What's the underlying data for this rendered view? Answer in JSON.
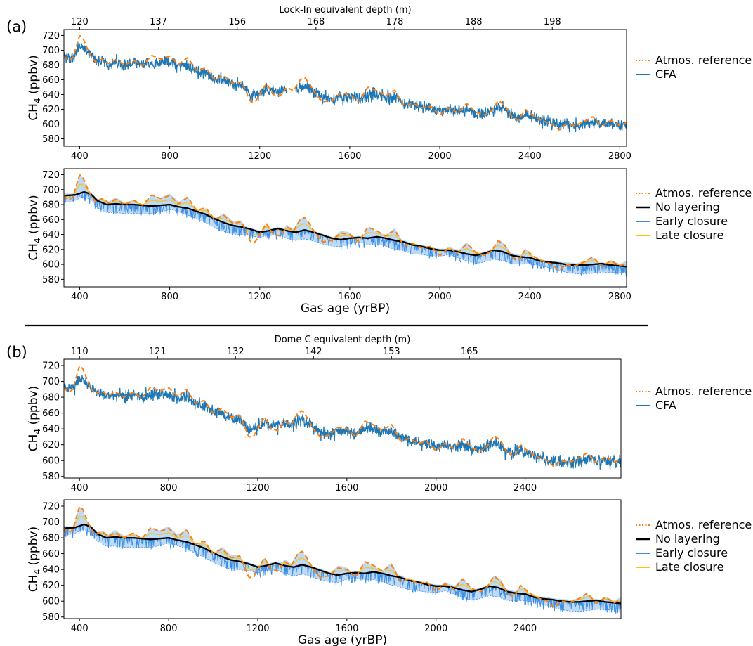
{
  "figure": {
    "separator_color": "#000000"
  },
  "colors": {
    "atmos": "#ff7f0e",
    "cfa": "#1f77b4",
    "no_layering": "#000000",
    "early": "#3a8ee6",
    "late": "#ffc000",
    "band_fill": "#a8cdf2"
  },
  "chart_data": [
    {
      "panel": "(a)",
      "type": "line",
      "xlabel": "",
      "ylabel": "CH4 (ppbv)",
      "top_axis_label": "Lock-In equivalent depth (m)",
      "top_ticks": [
        {
          "x": 400,
          "label": "120"
        },
        {
          "x": 750,
          "label": "137"
        },
        {
          "x": 1100,
          "label": "156"
        },
        {
          "x": 1450,
          "label": "168"
        },
        {
          "x": 1800,
          "label": "178"
        },
        {
          "x": 2150,
          "label": "188"
        },
        {
          "x": 2500,
          "label": "198"
        }
      ],
      "xlim": [
        330,
        2830
      ],
      "ylim": [
        570,
        728
      ],
      "xticks": [
        400,
        800,
        1200,
        1600,
        2000,
        2400,
        2800
      ],
      "yticks": [
        580,
        600,
        620,
        640,
        660,
        680,
        700,
        720
      ],
      "legend": [
        "Atmos. reference",
        "CFA"
      ],
      "series": [
        {
          "name": "Atmos. reference",
          "role": "atmos"
        },
        {
          "name": "CFA",
          "role": "cfa"
        }
      ]
    },
    {
      "panel": "",
      "type": "line",
      "xlabel": "Gas age (yrBP)",
      "ylabel": "CH4 (ppbv)",
      "xlim": [
        330,
        2830
      ],
      "ylim": [
        570,
        728
      ],
      "xticks": [
        400,
        800,
        1200,
        1600,
        2000,
        2400,
        2800
      ],
      "yticks": [
        580,
        600,
        620,
        640,
        660,
        680,
        700,
        720
      ],
      "legend": [
        "Atmos. reference",
        "No layering",
        "Early closure",
        "Late closure"
      ],
      "series": [
        {
          "name": "Atmos. reference",
          "role": "atmos"
        },
        {
          "name": "No layering",
          "role": "nolayer"
        },
        {
          "name": "Early closure",
          "role": "early"
        },
        {
          "name": "Late closure",
          "role": "late"
        }
      ]
    },
    {
      "panel": "(b)",
      "type": "line",
      "xlabel": "",
      "ylabel": "CH4 (ppbv)",
      "top_axis_label": "Dome C equivalent depth (m)",
      "top_ticks": [
        {
          "x": 400,
          "label": "110"
        },
        {
          "x": 750,
          "label": "121"
        },
        {
          "x": 1100,
          "label": "132"
        },
        {
          "x": 1450,
          "label": "142"
        },
        {
          "x": 1800,
          "label": "153"
        },
        {
          "x": 2150,
          "label": "165"
        }
      ],
      "xlim": [
        330,
        2830
      ],
      "ylim": [
        578,
        728
      ],
      "xticks": [
        400,
        800,
        1200,
        1600,
        2000,
        2400
      ],
      "yticks": [
        580,
        600,
        620,
        640,
        660,
        680,
        700,
        720
      ],
      "legend": [
        "Atmos. reference",
        "CFA"
      ],
      "series": [
        {
          "name": "Atmos. reference",
          "role": "atmos"
        },
        {
          "name": "CFA",
          "role": "cfa"
        }
      ]
    },
    {
      "panel": "",
      "type": "line",
      "xlabel": "Gas age (yrBP)",
      "ylabel": "CH4 (ppbv)",
      "xlim": [
        330,
        2830
      ],
      "ylim": [
        578,
        728
      ],
      "xticks": [
        400,
        800,
        1200,
        1600,
        2000,
        2400
      ],
      "yticks": [
        580,
        600,
        620,
        640,
        660,
        680,
        700,
        720
      ],
      "legend": [
        "Atmos. reference",
        "No layering",
        "Early closure",
        "Late closure"
      ],
      "series": [
        {
          "name": "Atmos. reference",
          "role": "atmos"
        },
        {
          "name": "No layering",
          "role": "nolayer"
        },
        {
          "name": "Early closure",
          "role": "early"
        },
        {
          "name": "Late closure",
          "role": "late"
        }
      ]
    }
  ],
  "reference_curve": {
    "x": [
      330,
      350,
      370,
      390,
      400,
      415,
      430,
      450,
      470,
      500,
      530,
      560,
      600,
      640,
      680,
      720,
      760,
      800,
      840,
      880,
      920,
      960,
      1000,
      1040,
      1080,
      1120,
      1160,
      1180,
      1200,
      1230,
      1260,
      1290,
      1320,
      1350,
      1380,
      1400,
      1420,
      1450,
      1480,
      1520,
      1560,
      1600,
      1640,
      1680,
      1720,
      1760,
      1800,
      1840,
      1880,
      1920,
      1960,
      2000,
      2040,
      2080,
      2120,
      2160,
      2200,
      2230,
      2260,
      2290,
      2320,
      2350,
      2380,
      2420,
      2460,
      2500,
      2530,
      2560,
      2600,
      2640,
      2680,
      2720,
      2760,
      2800,
      2830
    ],
    "y": [
      692,
      686,
      690,
      710,
      720,
      716,
      705,
      692,
      684,
      688,
      682,
      687,
      680,
      686,
      679,
      693,
      688,
      692,
      681,
      690,
      672,
      676,
      660,
      666,
      655,
      657,
      630,
      630,
      640,
      655,
      640,
      638,
      650,
      645,
      660,
      663,
      655,
      640,
      630,
      632,
      642,
      640,
      630,
      650,
      645,
      638,
      646,
      625,
      628,
      622,
      624,
      612,
      622,
      615,
      628,
      616,
      612,
      618,
      632,
      625,
      610,
      605,
      620,
      610,
      604,
      600,
      592,
      600,
      598,
      603,
      610,
      597,
      605,
      598,
      602
    ]
  },
  "model_curve": {
    "x": [
      330,
      380,
      420,
      450,
      480,
      520,
      560,
      600,
      640,
      680,
      720,
      760,
      800,
      840,
      880,
      920,
      960,
      1000,
      1040,
      1080,
      1120,
      1160,
      1200,
      1240,
      1280,
      1320,
      1360,
      1400,
      1440,
      1480,
      1520,
      1560,
      1600,
      1640,
      1680,
      1720,
      1760,
      1800,
      1840,
      1880,
      1920,
      1960,
      2000,
      2040,
      2080,
      2120,
      2160,
      2200,
      2240,
      2280,
      2320,
      2360,
      2400,
      2440,
      2480,
      2520,
      2560,
      2600,
      2640,
      2680,
      2720,
      2760,
      2800,
      2830
    ],
    "y": [
      692,
      693,
      697,
      694,
      685,
      680,
      681,
      680,
      680,
      679,
      678,
      679,
      680,
      677,
      675,
      671,
      667,
      661,
      656,
      652,
      650,
      647,
      643,
      645,
      648,
      645,
      643,
      646,
      643,
      639,
      635,
      633,
      635,
      636,
      635,
      637,
      635,
      632,
      630,
      626,
      624,
      621,
      619,
      619,
      617,
      614,
      612,
      615,
      619,
      617,
      612,
      610,
      609,
      605,
      603,
      602,
      600,
      599,
      599,
      600,
      601,
      599,
      598,
      597
    ]
  }
}
